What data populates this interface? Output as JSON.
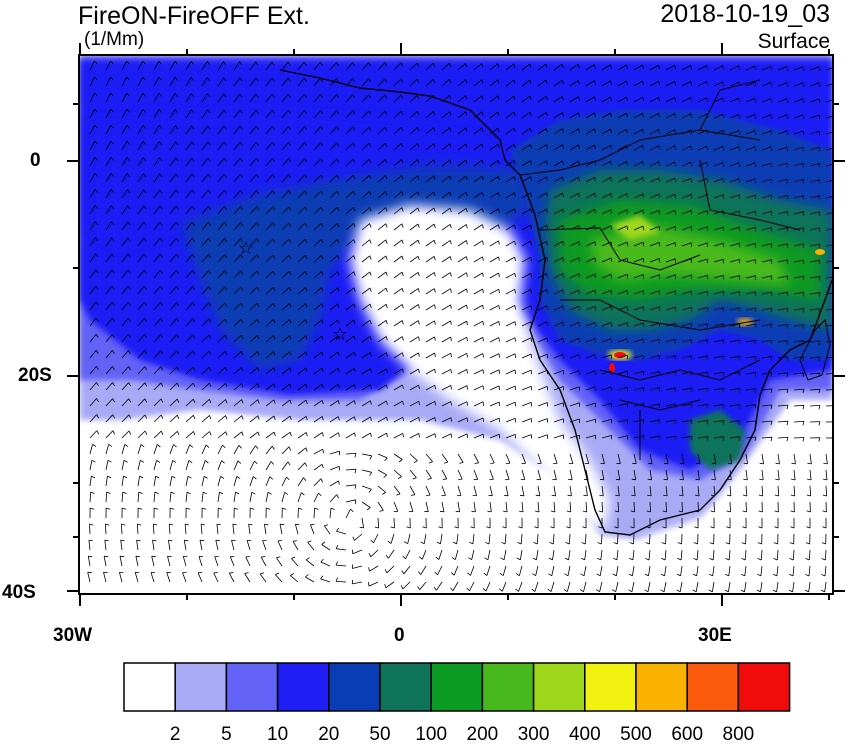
{
  "header": {
    "title": "FireON-FireOFF Ext.",
    "units": "(1/Mm)",
    "datetime": "2018-10-19_03",
    "level": "Surface"
  },
  "axes": {
    "y_ticks": [
      "0",
      "20S",
      "40S"
    ],
    "x_ticks": [
      "30W",
      "0",
      "30E"
    ]
  },
  "colorbar": {
    "colors": [
      "#ffffff",
      "#a9aaf5",
      "#6262f7",
      "#1f1ff5",
      "#0a3cb5",
      "#0f735a",
      "#0b9a22",
      "#48b91c",
      "#9fd71d",
      "#f2f211",
      "#f9b200",
      "#fb5a0c",
      "#f20b0b"
    ],
    "labels": [
      "2",
      "5",
      "10",
      "20",
      "50",
      "100",
      "200",
      "300",
      "400",
      "500",
      "600",
      "800"
    ]
  }
}
